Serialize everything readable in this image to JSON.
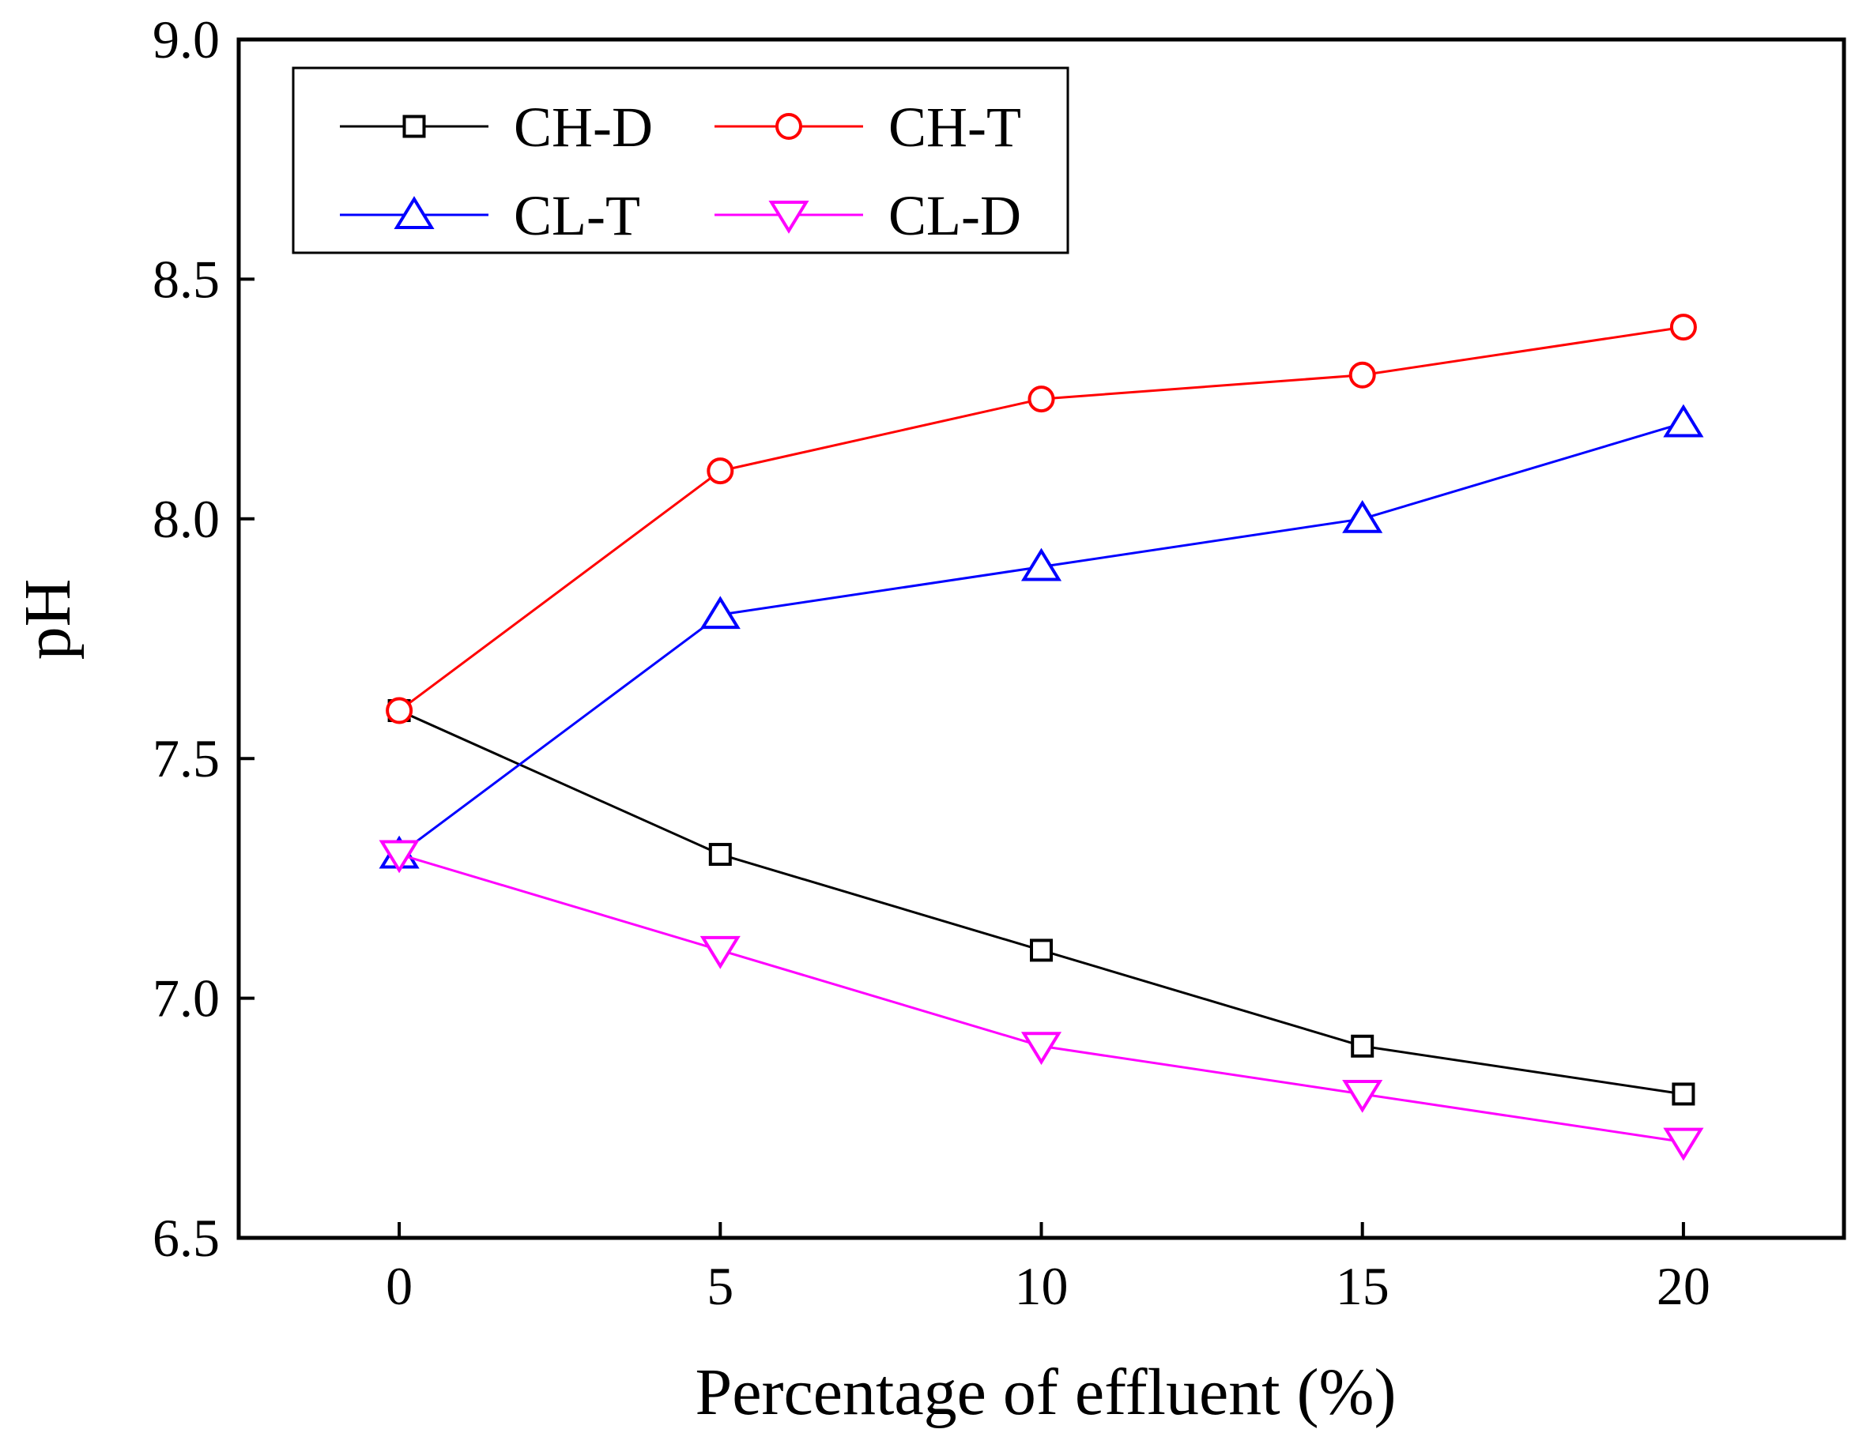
{
  "chart_data": {
    "type": "line",
    "title": "",
    "xlabel": "Percentage of effluent (%)",
    "ylabel": "pH",
    "x": [
      0,
      5,
      10,
      15,
      20
    ],
    "xlim": [
      -2.5,
      22.5
    ],
    "ylim": [
      6.5,
      9.0
    ],
    "xticks": [
      0,
      5,
      10,
      15,
      20
    ],
    "xtick_labels": [
      "0",
      "5",
      "10",
      "15",
      "20"
    ],
    "yticks": [
      6.5,
      7.0,
      7.5,
      8.0,
      8.5,
      9.0
    ],
    "ytick_labels": [
      "6.5",
      "7.0",
      "7.5",
      "8.0",
      "8.5",
      "9.0"
    ],
    "grid": false,
    "legend_position": "top-left",
    "series": [
      {
        "name": "CH-D",
        "color": "#000000",
        "marker": "square",
        "values": [
          7.6,
          7.3,
          7.1,
          6.9,
          6.8
        ]
      },
      {
        "name": "CH-T",
        "color": "#ff0000",
        "marker": "circle",
        "values": [
          7.6,
          8.1,
          8.25,
          8.3,
          8.4
        ]
      },
      {
        "name": "CL-T",
        "color": "#0000ff",
        "marker": "triangle-up",
        "values": [
          7.3,
          7.8,
          7.9,
          8.0,
          8.2
        ]
      },
      {
        "name": "CL-D",
        "color": "#ff00ff",
        "marker": "triangle-down",
        "values": [
          7.3,
          7.1,
          6.9,
          6.8,
          6.7
        ]
      }
    ]
  }
}
